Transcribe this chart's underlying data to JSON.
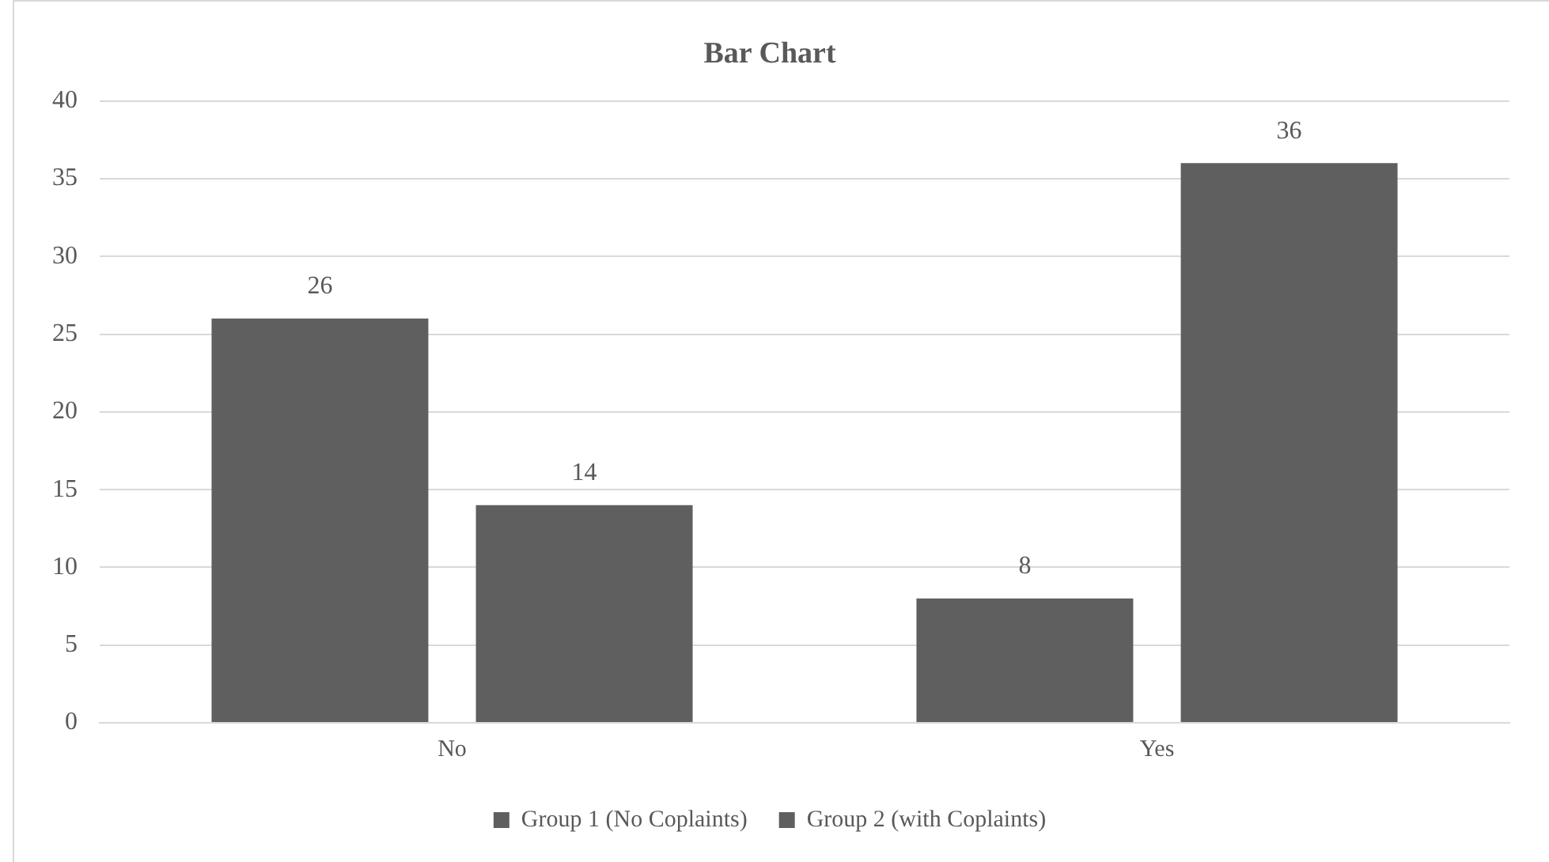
{
  "chart_data": {
    "type": "bar",
    "title": "Bar Chart",
    "categories": [
      "No",
      "Yes"
    ],
    "series": [
      {
        "name": "Group 1 (No Coplaints)",
        "color": "#5f5f5f",
        "values": [
          26,
          8
        ]
      },
      {
        "name": "Group 2 (with Coplaints)",
        "color": "#5f5f5f",
        "values": [
          14,
          36
        ]
      }
    ],
    "ylim": [
      0,
      40
    ],
    "yticks": [
      0,
      5,
      10,
      15,
      20,
      25,
      30,
      35,
      40
    ],
    "grid": "y",
    "legend": "bottom",
    "data_labels": true
  }
}
